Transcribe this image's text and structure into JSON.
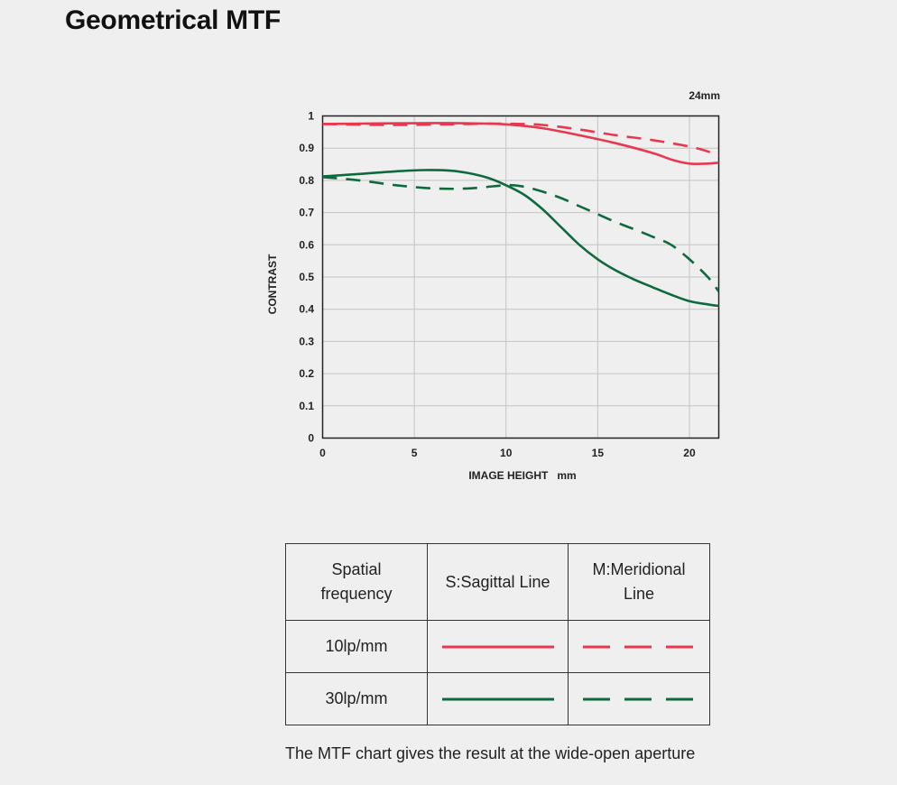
{
  "page": {
    "title": "Geometrical MTF",
    "note": "The MTF chart gives the result at the wide-open aperture"
  },
  "chart_data": {
    "type": "line",
    "corner_label": "24mm",
    "xlabel": "IMAGE HEIGHT   mm",
    "ylabel": "CONTRAST",
    "xlim": [
      0,
      21.6
    ],
    "ylim": [
      0,
      1
    ],
    "xticks": [
      0,
      5,
      10,
      15,
      20
    ],
    "yticks": [
      0,
      0.1,
      0.2,
      0.3,
      0.4,
      0.5,
      0.6,
      0.7,
      0.8,
      0.9,
      1
    ],
    "ytick_labels": [
      "0",
      "0.1",
      "0.2",
      "0.3",
      "0.4",
      "0.5",
      "0.6",
      "0.7",
      "0.8",
      "0.9",
      "1"
    ],
    "grid": true,
    "series": [
      {
        "frequency": "10lp/mm",
        "line": "S:Sagittal Line",
        "color": "#e8384f",
        "style": "solid",
        "x": [
          0,
          2,
          4,
          6,
          8,
          10,
          12,
          14,
          16,
          18,
          19,
          20,
          21,
          21.6
        ],
        "y": [
          0.975,
          0.976,
          0.977,
          0.978,
          0.977,
          0.974,
          0.962,
          0.94,
          0.915,
          0.885,
          0.865,
          0.852,
          0.852,
          0.855
        ]
      },
      {
        "frequency": "10lp/mm",
        "line": "M:Meridional Line",
        "color": "#e8384f",
        "style": "dashed",
        "x": [
          0,
          2,
          4,
          6,
          8,
          10,
          12,
          14,
          16,
          18,
          20,
          21,
          21.6
        ],
        "y": [
          0.975,
          0.973,
          0.972,
          0.973,
          0.975,
          0.976,
          0.972,
          0.958,
          0.94,
          0.925,
          0.905,
          0.89,
          0.875
        ]
      },
      {
        "frequency": "30lp/mm",
        "line": "S:Sagittal Line",
        "color": "#0e6a3d",
        "style": "solid",
        "x": [
          0,
          2,
          4,
          5.5,
          7,
          8,
          9,
          10,
          11,
          12,
          13,
          14,
          15,
          16,
          17,
          18,
          19,
          20,
          21,
          21.6
        ],
        "y": [
          0.812,
          0.82,
          0.828,
          0.832,
          0.83,
          0.822,
          0.808,
          0.785,
          0.755,
          0.71,
          0.655,
          0.6,
          0.555,
          0.52,
          0.492,
          0.468,
          0.445,
          0.425,
          0.415,
          0.41
        ]
      },
      {
        "frequency": "30lp/mm",
        "line": "M:Meridional Line",
        "color": "#0e6a3d",
        "style": "dashed",
        "x": [
          0,
          2,
          4,
          6,
          8,
          10,
          11,
          12,
          13,
          14,
          15,
          16,
          17,
          18,
          19,
          20,
          21,
          21.6
        ],
        "y": [
          0.81,
          0.8,
          0.785,
          0.775,
          0.775,
          0.785,
          0.78,
          0.765,
          0.745,
          0.72,
          0.695,
          0.67,
          0.648,
          0.625,
          0.6,
          0.555,
          0.5,
          0.455
        ]
      }
    ]
  },
  "legend_table": {
    "header": {
      "col1": "Spatial frequency",
      "col2": "S:Sagittal Line",
      "col3": "M:Meridional Line"
    },
    "rows": [
      {
        "label": "10lp/mm",
        "color": "#e8384f"
      },
      {
        "label": "30lp/mm",
        "color": "#0e6a3d"
      }
    ]
  }
}
